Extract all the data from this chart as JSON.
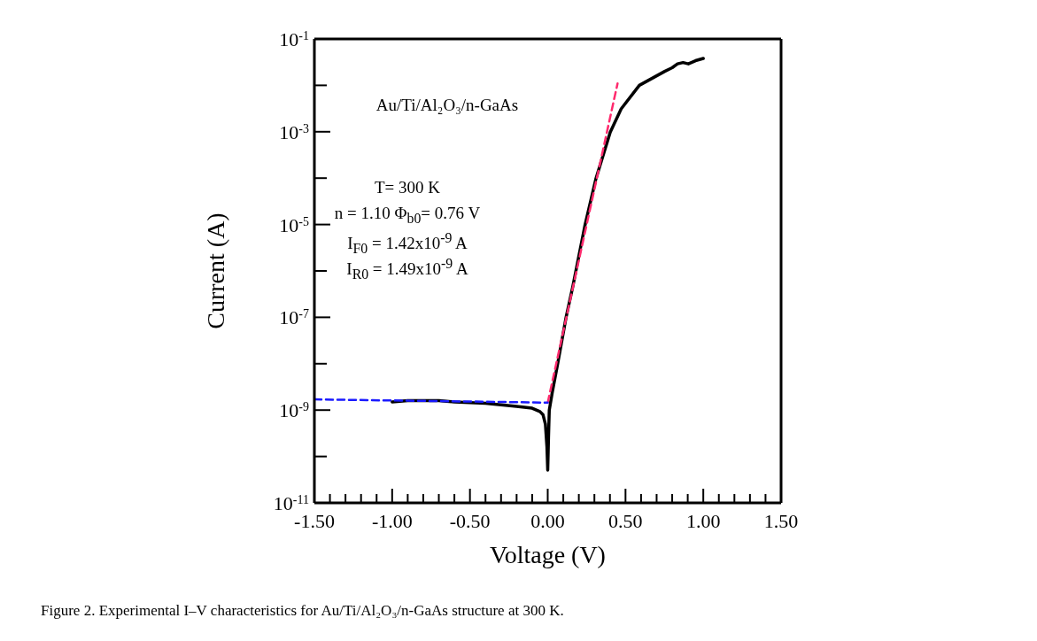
{
  "chart_data": {
    "type": "line",
    "xlabel": "Voltage (V)",
    "ylabel": "Current (A)",
    "log": "y",
    "marker": "none",
    "xlim": [
      -1.5,
      1.5
    ],
    "xticks": [
      {
        "value": -1.5,
        "label": "-1.50"
      },
      {
        "value": -1.4,
        "label": null
      },
      {
        "value": -1.3,
        "label": null
      },
      {
        "value": -1.2,
        "label": null
      },
      {
        "value": -1.1,
        "label": null
      },
      {
        "value": -1.0,
        "label": "-1.00"
      },
      {
        "value": -0.9,
        "label": null
      },
      {
        "value": -0.8,
        "label": null
      },
      {
        "value": -0.7,
        "label": null
      },
      {
        "value": -0.6,
        "label": null
      },
      {
        "value": -0.5,
        "label": "-0.50"
      },
      {
        "value": -0.4,
        "label": null
      },
      {
        "value": -0.3,
        "label": null
      },
      {
        "value": -0.2,
        "label": null
      },
      {
        "value": -0.1,
        "label": null
      },
      {
        "value": 0,
        "label": "0.00"
      },
      {
        "value": 0.1,
        "label": null
      },
      {
        "value": 0.2,
        "label": null
      },
      {
        "value": 0.3,
        "label": null
      },
      {
        "value": 0.4,
        "label": null
      },
      {
        "value": 0.5,
        "label": "0.50"
      },
      {
        "value": 0.6,
        "label": null
      },
      {
        "value": 0.7,
        "label": null
      },
      {
        "value": 0.8,
        "label": null
      },
      {
        "value": 0.9,
        "label": null
      },
      {
        "value": 1.0,
        "label": "1.00"
      },
      {
        "value": 1.1,
        "label": null
      },
      {
        "value": 1.2,
        "label": null
      },
      {
        "value": 1.3,
        "label": null
      },
      {
        "value": 1.4,
        "label": null
      },
      {
        "value": 1.5,
        "label": "1.50"
      }
    ],
    "ylim": [
      1e-11,
      0.1
    ],
    "yticks": [
      {
        "value": 1e-11,
        "label": "10$^{-11}$"
      },
      {
        "value": 1e-10,
        "label": null
      },
      {
        "value": 1e-09,
        "label": "10$^{-9}$"
      },
      {
        "value": 1e-08,
        "label": null
      },
      {
        "value": 1e-07,
        "label": "10$^{-7}$"
      },
      {
        "value": 1e-06,
        "label": null
      },
      {
        "value": 1e-05,
        "label": "10$^{-5}$"
      },
      {
        "value": 0.0001,
        "label": null
      },
      {
        "value": 0.001,
        "label": "10$^{-3}$"
      },
      {
        "value": 0.01,
        "label": null
      },
      {
        "value": 0.1,
        "label": "10$^{-1}$"
      }
    ],
    "series": [
      {
        "color": "#000000",
        "line_style": "solid",
        "x": [
          -1.0,
          -0.9,
          -0.8,
          -0.7,
          -0.6,
          -0.5,
          -0.4,
          -0.3,
          -0.2,
          -0.1,
          -0.05,
          -0.03,
          -0.015,
          -0.005,
          0.0,
          0.005,
          0.01,
          0.03,
          0.064,
          0.118,
          0.16,
          0.239,
          0.309,
          0.402,
          0.472,
          0.589,
          0.752,
          0.8,
          0.834,
          0.87,
          0.904,
          0.95,
          1.0
        ],
        "values": [
          1.5e-09,
          1.6e-09,
          1.6e-09,
          1.6e-09,
          1.5e-09,
          1.45e-09,
          1.4e-09,
          1.3e-09,
          1.2e-09,
          1.1e-09,
          9.3e-10,
          7.9e-10,
          5e-10,
          1.6e-10,
          5.1e-11,
          2.5e-10,
          1e-09,
          2.5e-09,
          1e-08,
          1e-07,
          4.4e-07,
          9.5e-06,
          9.5e-05,
          0.00098,
          0.0031,
          0.01,
          0.02,
          0.024,
          0.029,
          0.031,
          0.029,
          0.034,
          0.038
        ]
      },
      {
        "color": "#ff2a6d",
        "line_style": "dashed",
        "x": [
          0.0,
          0.449
        ],
        "values": [
          1.45e-09,
          0.011
        ]
      },
      {
        "color": "#1a1aff",
        "line_style": "dashed",
        "x": [
          -1.5,
          0.0
        ],
        "values": [
          1.7e-09,
          1.45e-09
        ]
      }
    ],
    "annotations": [
      "Au/Ti/Al₂O₃/n-GaAs",
      "T= 300 K",
      "n = 1.10  Φ$_{b0}$= 0.76 V",
      "I$_{F0}$ = 1.42x10$^{-9}$ A",
      "I$_{R0}$ = 1.49x10$^{-9}$ A",
      "Figure 2. Experimental I–V characteristics for Au/Ti/Al₂O₃/n-GaAs structure at 300 K."
    ]
  }
}
